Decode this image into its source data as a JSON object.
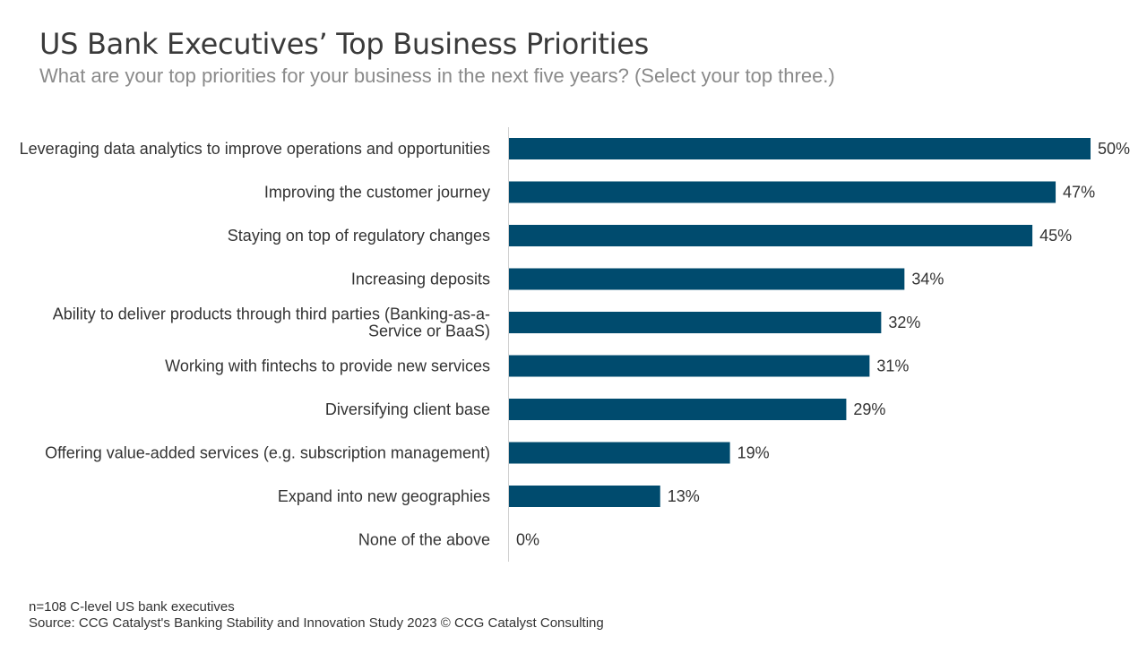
{
  "header": {
    "title": "US Bank Executives’ Top Business Priorities",
    "subtitle": "What are your top priorities for your business in the next five years? (Select your top three.)"
  },
  "chart_data": {
    "type": "bar",
    "orientation": "horizontal",
    "categories": [
      [
        "Leveraging data analytics to improve operations and opportunities"
      ],
      [
        "Improving the customer journey"
      ],
      [
        "Staying on top of regulatory changes"
      ],
      [
        "Increasing deposits"
      ],
      [
        "Ability to deliver products through third parties (Banking-as-a-",
        "Service or BaaS)"
      ],
      [
        "Working with fintechs to provide new services"
      ],
      [
        "Diversifying client base"
      ],
      [
        "Offering value-added services (e.g. subscription management)"
      ],
      [
        "Expand into new geographies"
      ],
      [
        "None of the above"
      ]
    ],
    "values": [
      50,
      47,
      45,
      34,
      32,
      31,
      29,
      19,
      13,
      0
    ],
    "value_labels": [
      "50%",
      "47%",
      "45%",
      "34%",
      "32%",
      "31%",
      "29%",
      "19%",
      "13%",
      "0%"
    ],
    "xlim": [
      0,
      50
    ],
    "unit": "%",
    "bar_color": "#004b6e",
    "axis_color": "#d0d0d0",
    "grid": false
  },
  "footer": {
    "note": "n=108 C-level US bank executives",
    "source": "Source: CCG Catalyst's Banking Stability and Innovation Study 2023 © CCG Catalyst Consulting"
  }
}
